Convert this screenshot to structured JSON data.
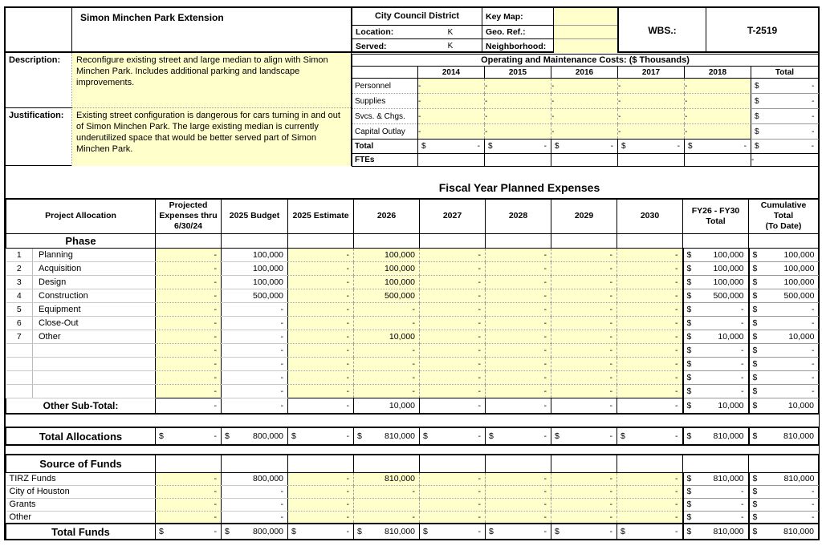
{
  "project": {
    "title": "Simon Minchen Park Extension",
    "description_label": "Description:",
    "description": "Reconfigure existing street and large median to align with Simon Minchen Park. Includes additional parking and landscape improvements.",
    "justification_label": "Justification:",
    "justification": "Existing street configuration is dangerous for cars turning in and out of Simon Minchen Park. The large existing median is currently underutilized space that would be better served part of Simon Minchen Park.",
    "council": {
      "header": "City Council District",
      "location_label": "Location:",
      "location": "K",
      "served_label": "Served:",
      "served": "K"
    },
    "refs": {
      "key_map_label": "Key Map:",
      "key_map": "",
      "geo_ref_label": "Geo. Ref.:",
      "geo_ref": "",
      "neighborhood_label": "Neighborhood:",
      "neighborhood": ""
    },
    "wbs_label": "WBS.:",
    "wbs": "T-2519"
  },
  "colors": {
    "input_yellow": "#FFFFCC"
  },
  "om": {
    "title": "Operating and Maintenance Costs: ($ Thousands)",
    "year_headers": [
      "2014",
      "2015",
      "2016",
      "2017",
      "2018",
      "Total"
    ],
    "expense_rows": [
      {
        "label": "Personnel",
        "cells": [
          "-",
          "-",
          "-",
          "-",
          "-"
        ],
        "total": "$ -"
      },
      {
        "label": "Supplies",
        "cells": [
          "-",
          "-",
          "-",
          "-",
          "-"
        ],
        "total": "$ -"
      },
      {
        "label": "Svcs. & Chgs.",
        "cells": [
          "-",
          "-",
          "-",
          "-",
          "-"
        ],
        "total": "$ -"
      },
      {
        "label": "Capital Outlay",
        "cells": [
          "-",
          "-",
          "-",
          "-",
          "-"
        ],
        "total": "$ -"
      }
    ],
    "total_row": {
      "label": "Total",
      "cells": [
        "$ -",
        "$ -",
        "$ -",
        "$ -",
        "$ -"
      ],
      "total": "$ -"
    },
    "ftes_row": {
      "label": "FTEs",
      "cells": [
        "",
        "",
        "",
        "",
        ""
      ],
      "total": "-"
    }
  },
  "fy": {
    "section_title": "Fiscal Year Planned Expenses",
    "col_headers": [
      "Project Allocation",
      "Projected\nExpenses thru\n6/30/24",
      "2025 Budget",
      "2025 Estimate",
      "2026",
      "2027",
      "2028",
      "2029",
      "2030",
      "FY26 - FY30\nTotal",
      "Cumulative\nTotal\n(To Date)"
    ],
    "phase_label": "Phase",
    "phase_rows": [
      {
        "num": "1",
        "label": "Planning",
        "cells": [
          "-",
          "100,000",
          "-",
          "100,000",
          "-",
          "-",
          "-",
          "-",
          "$ 100,000",
          "$ 100,000"
        ]
      },
      {
        "num": "2",
        "label": "Acquisition",
        "cells": [
          "-",
          "100,000",
          "-",
          "100,000",
          "-",
          "-",
          "-",
          "-",
          "$ 100,000",
          "$ 100,000"
        ]
      },
      {
        "num": "3",
        "label": "Design",
        "cells": [
          "-",
          "100,000",
          "-",
          "100,000",
          "-",
          "-",
          "-",
          "-",
          "$ 100,000",
          "$ 100,000"
        ]
      },
      {
        "num": "4",
        "label": "Construction",
        "cells": [
          "-",
          "500,000",
          "-",
          "500,000",
          "-",
          "-",
          "-",
          "-",
          "$ 500,000",
          "$ 500,000"
        ]
      },
      {
        "num": "5",
        "label": "Equipment",
        "cells": [
          "-",
          "-",
          "-",
          "-",
          "-",
          "-",
          "-",
          "-",
          "$ -",
          "$ -"
        ]
      },
      {
        "num": "6",
        "label": "Close-Out",
        "cells": [
          "-",
          "-",
          "-",
          "-",
          "-",
          "-",
          "-",
          "-",
          "$ -",
          "$ -"
        ]
      },
      {
        "num": "7",
        "label": "Other",
        "cells": [
          "-",
          "-",
          "-",
          "10,000",
          "-",
          "-",
          "-",
          "-",
          "$ 10,000",
          "$ 10,000"
        ]
      },
      {
        "num": "",
        "label": "",
        "cells": [
          "-",
          "-",
          "-",
          "-",
          "-",
          "-",
          "-",
          "-",
          "$ -",
          "$ -"
        ]
      },
      {
        "num": "",
        "label": "",
        "cells": [
          "-",
          "-",
          "-",
          "-",
          "-",
          "-",
          "-",
          "-",
          "$ -",
          "$ -"
        ]
      },
      {
        "num": "",
        "label": "",
        "cells": [
          "-",
          "-",
          "-",
          "-",
          "-",
          "-",
          "-",
          "-",
          "$ -",
          "$ -"
        ]
      },
      {
        "num": "",
        "label": "",
        "cells": [
          "-",
          "-",
          "-",
          "-",
          "-",
          "-",
          "-",
          "-",
          "$ -",
          "$ -"
        ]
      }
    ],
    "subtotal": {
      "label": "Other Sub-Total:",
      "cells": [
        "-",
        "-",
        "-",
        "10,000",
        "-",
        "-",
        "-",
        "-",
        "$ 10,000",
        "$ 10,000"
      ]
    },
    "total_allocations": {
      "label": "Total Allocations",
      "cells": [
        "$ -",
        "$ 800,000",
        "$ -",
        "$ 810,000",
        "$ -",
        "$ -",
        "$ -",
        "$ -",
        "$ 810,000",
        "$ 810,000"
      ]
    },
    "source_of_funds_label": "Source of Funds",
    "fund_rows": [
      {
        "label": "TIRZ Funds",
        "cells": [
          "-",
          "800,000",
          "-",
          "810,000",
          "-",
          "-",
          "-",
          "-",
          "$ 810,000",
          "$ 810,000"
        ]
      },
      {
        "label": "City of Houston",
        "cells": [
          "-",
          "-",
          "-",
          "-",
          "-",
          "-",
          "-",
          "-",
          "$ -",
          "$ -"
        ]
      },
      {
        "label": "Grants",
        "cells": [
          "-",
          "-",
          "-",
          "",
          "-",
          "-",
          "-",
          "-",
          "$ -",
          "$ -"
        ]
      },
      {
        "label": "Other",
        "cells": [
          "-",
          "-",
          "-",
          "-",
          "-",
          "-",
          "-",
          "-",
          "$ -",
          "$ -"
        ]
      }
    ],
    "total_funds": {
      "label": "Total Funds",
      "cells": [
        "$ -",
        "$ 800,000",
        "$ -",
        "$ 810,000",
        "$ -",
        "$ -",
        "$ -",
        "$ -",
        "$ 810,000",
        "$ 810,000"
      ]
    }
  }
}
